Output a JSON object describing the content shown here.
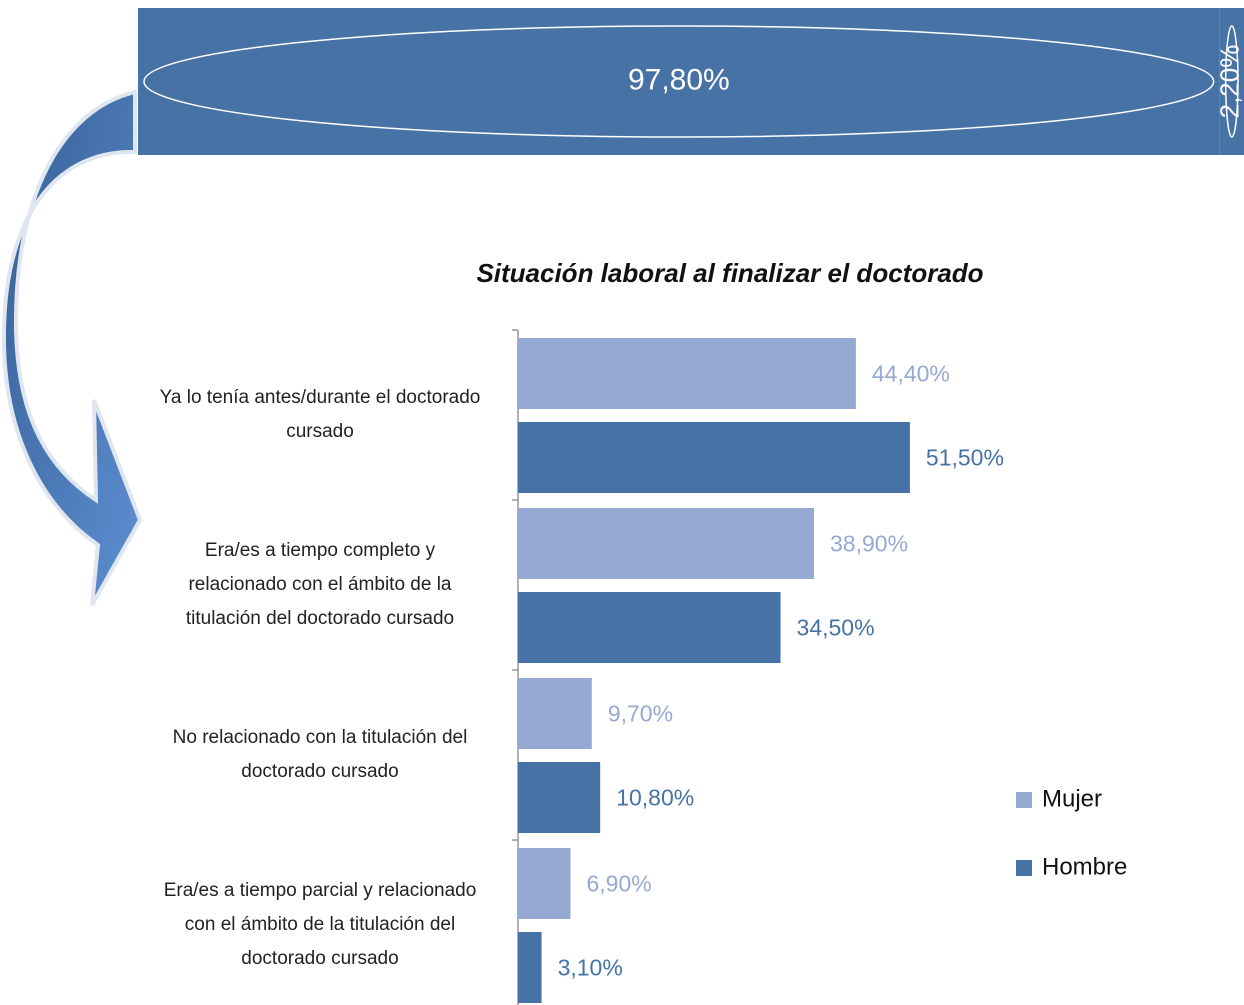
{
  "chart_data": [
    {
      "type": "stacked-bar",
      "series": [
        {
          "color": "#4672a6",
          "values": [
            97.8
          ],
          "value_labels": [
            "97,80%"
          ]
        },
        {
          "color": "#4672a6",
          "values": [
            2.2
          ],
          "value_labels": [
            "2,20%"
          ]
        }
      ]
    },
    {
      "type": "hbar",
      "title": "Situación laboral al finalizar el doctorado",
      "categories": [
        "Ya lo tenía antes/durante el doctorado cursado",
        "Era/es a tiempo completo y relacionado con el ámbito de la titulación del doctorado cursado",
        "No relacionado con la titulación del doctorado cursado",
        "Era/es a tiempo parcial y relacionado con el ámbito de la titulación del doctorado cursado"
      ],
      "series": [
        {
          "name": "Mujer",
          "color": "#95a9d2",
          "values": [
            44.4,
            38.9,
            9.7,
            6.9
          ],
          "value_labels": [
            "44,40%",
            "38,90%",
            "9,70%",
            "6,90%"
          ]
        },
        {
          "name": "Hombre",
          "color": "#4672a6",
          "values": [
            51.5,
            34.5,
            10.8,
            3.1
          ],
          "value_labels": [
            "51,50%",
            "34,50%",
            "10,80%",
            "3,10%"
          ]
        }
      ],
      "legend": "right"
    }
  ]
}
